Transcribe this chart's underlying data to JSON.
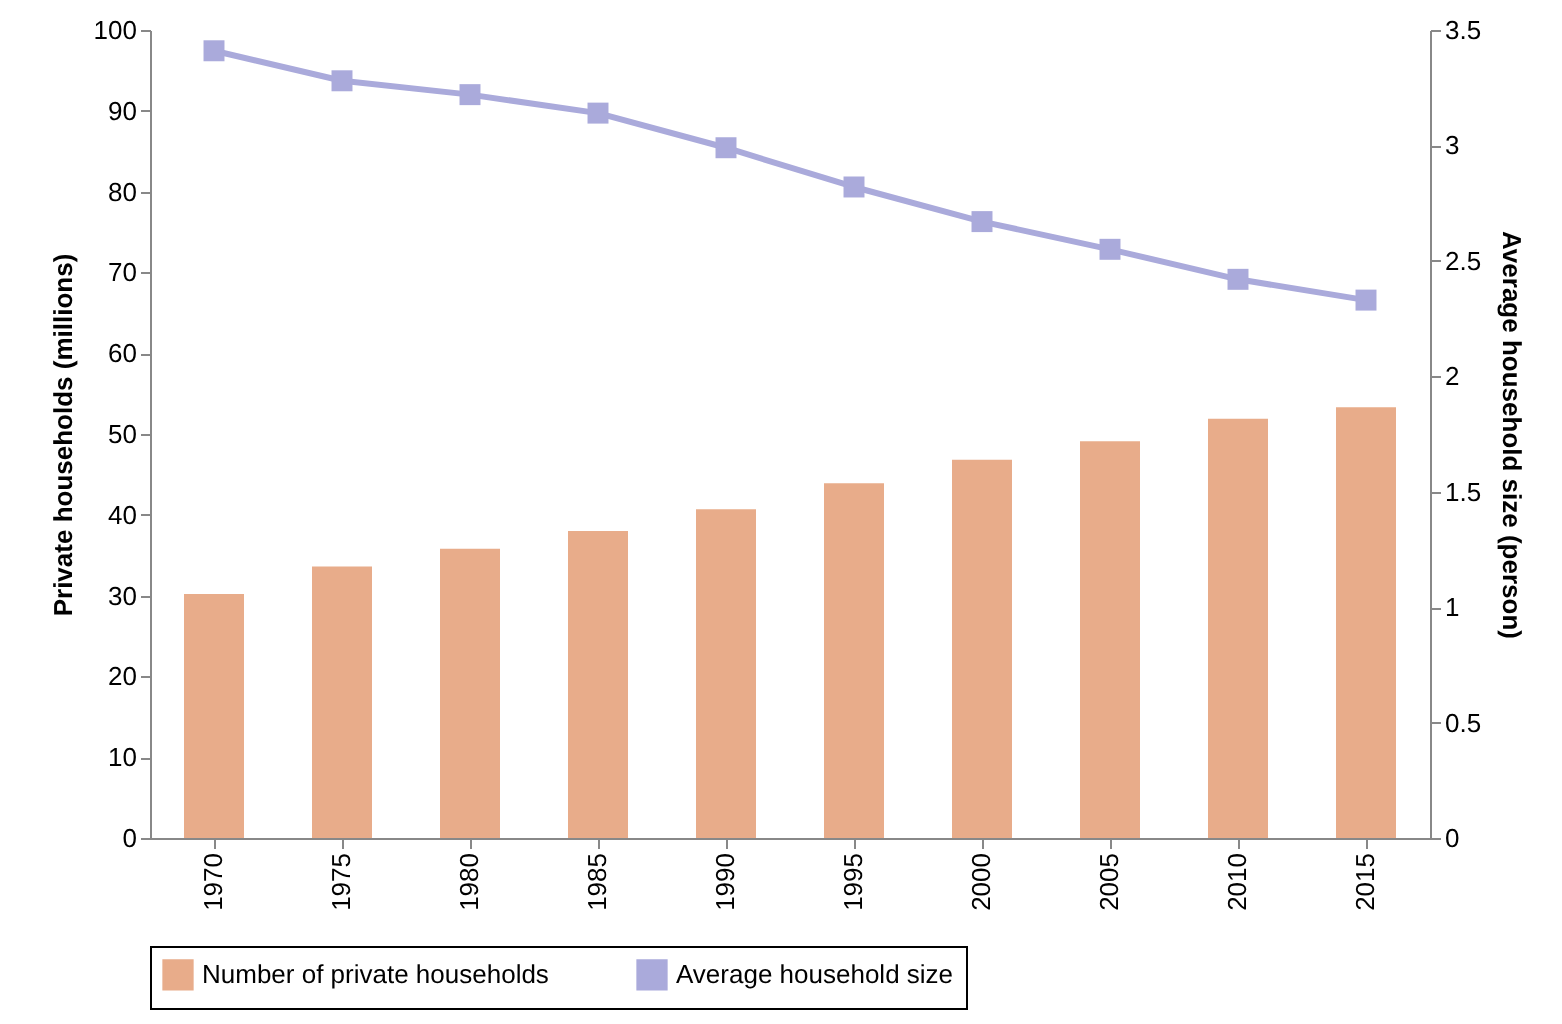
{
  "chart_data": {
    "type": "bar",
    "ylabel": "Private households (millions)",
    "y2label": "Average household size (person)",
    "categories": [
      "1970",
      "1975",
      "1980",
      "1985",
      "1990",
      "1995",
      "2000",
      "2005",
      "2010",
      "2015"
    ],
    "series": [
      {
        "name": "Number of private households",
        "color": "#e8ac8a",
        "values": [
          30.2,
          33.6,
          35.8,
          38.0,
          40.7,
          43.9,
          46.8,
          49.1,
          51.9,
          53.3
        ]
      },
      {
        "name": "Average household size",
        "type": "line",
        "axis": "y2",
        "color": "#aaaadb",
        "marker": "square",
        "values": [
          3.41,
          3.28,
          3.22,
          3.14,
          2.99,
          2.82,
          2.67,
          2.55,
          2.42,
          2.33
        ]
      }
    ],
    "ylim": [
      0,
      100
    ],
    "yticks": [
      0,
      10,
      20,
      30,
      40,
      50,
      60,
      70,
      80,
      90,
      100
    ],
    "y2lim": [
      0,
      3.5
    ],
    "y2ticks": [
      0,
      0.5,
      1,
      1.5,
      2,
      2.5,
      3,
      3.5
    ],
    "grid": false,
    "legend": "bottom"
  }
}
